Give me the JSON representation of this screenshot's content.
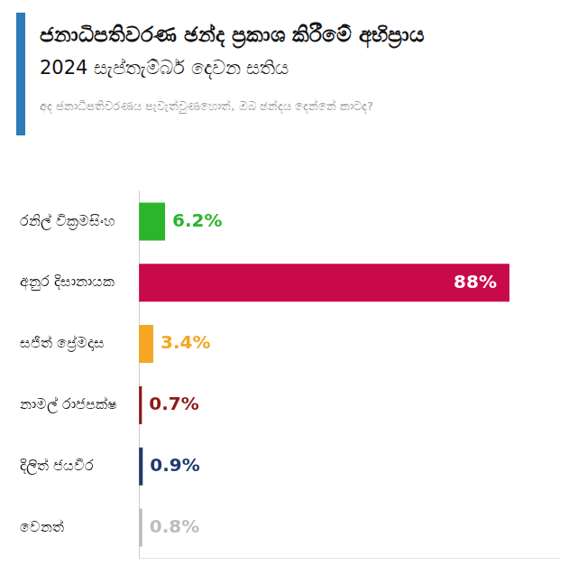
{
  "chart_data": {
    "type": "bar",
    "orientation": "horizontal",
    "title": "ජනාධිපතිවරණ ඡන්ද ප්‍රකාශ කිරීමේ අභිප්‍රාය",
    "subtitle": "2024 සැප්තැම්බර් දෙවන සතිය",
    "annotations": [
      "අද ජනාධිපතිවරණය පැවැත්වුණහොත්, ඔබ ඡන්දය දෙන්නේ කාටද?"
    ],
    "categories": [
      "රනිල් වික්‍රමසිංහ",
      "අනුර දිසානායක",
      "සජිත් ප්‍රේමදාස",
      "නාමල් රාජපක්ෂ",
      "දිලිත් ජයවීර",
      "වෙනත්"
    ],
    "values": [
      6.2,
      88,
      3.4,
      0.7,
      0.9,
      0.8
    ],
    "value_labels": [
      "6.2%",
      "88%",
      "3.4%",
      "0.7%",
      "0.9%",
      "0.8%"
    ],
    "colors": [
      "#2bb52b",
      "#c8094a",
      "#f5a623",
      "#8b1a1a",
      "#1f3a6e",
      "#bdbdbd"
    ],
    "xlim": [
      0,
      100
    ],
    "grid": false,
    "data_labels": true,
    "tick_labels": "y"
  }
}
